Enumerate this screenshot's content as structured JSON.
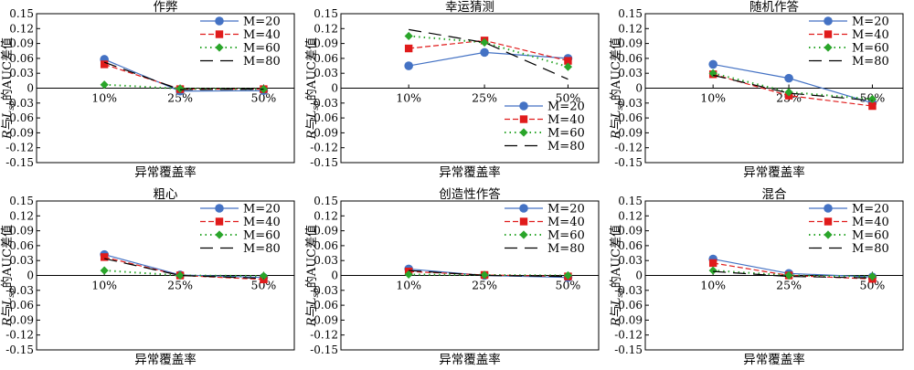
{
  "figure": {
    "legend_labels": [
      "M=20",
      "M=40",
      "M=60",
      "M=80"
    ],
    "series_styles": [
      {
        "color": "#4472c4",
        "marker": "circle",
        "dash": ""
      },
      {
        "color": "#e01b1b",
        "marker": "square",
        "dash": "6,3"
      },
      {
        "color": "#2aa52a",
        "marker": "diamond",
        "dash": "1.5,4"
      },
      {
        "color": "#000000",
        "marker": "none",
        "dash": "14,8"
      }
    ]
  },
  "chart_data": [
    {
      "type": "line",
      "title": "作弊",
      "xlabel": "异常覆盖率",
      "ylabel_parts": [
        "R",
        "与",
        "L",
        "sp",
        "的AUC差值"
      ],
      "categories": [
        "10%",
        "25%",
        "50%"
      ],
      "yticks": [
        "0.15",
        "0.12",
        "0.09",
        "0.06",
        "0.03",
        "0",
        "-0.03",
        "-0.06",
        "-0.09",
        "-0.12",
        "-0.15"
      ],
      "ylim": [
        -0.15,
        0.15
      ],
      "legend_position": "top-right",
      "series": [
        {
          "name": "M=20",
          "values": [
            0.058,
            -0.006,
            -0.005
          ]
        },
        {
          "name": "M=40",
          "values": [
            0.048,
            -0.002,
            -0.002
          ]
        },
        {
          "name": "M=60",
          "values": [
            0.007,
            -0.001,
            -0.002
          ]
        },
        {
          "name": "M=80",
          "values": [
            0.052,
            -0.003,
            -0.002
          ]
        }
      ]
    },
    {
      "type": "line",
      "title": "幸运猜测",
      "xlabel": "异常覆盖率",
      "ylabel_parts": [
        "R",
        "与",
        "L",
        "sp",
        "的AUC差值"
      ],
      "categories": [
        "10%",
        "25%",
        "50%"
      ],
      "yticks": [
        "0.15",
        "0.12",
        "0.09",
        "0.06",
        "0.03",
        "0",
        "-0.03",
        "-0.06",
        "-0.09",
        "-0.12",
        "-0.15"
      ],
      "ylim": [
        -0.15,
        0.15
      ],
      "legend_position": "bottom-right",
      "series": [
        {
          "name": "M=20",
          "values": [
            0.045,
            0.072,
            0.06
          ]
        },
        {
          "name": "M=40",
          "values": [
            0.08,
            0.096,
            0.055
          ]
        },
        {
          "name": "M=60",
          "values": [
            0.105,
            0.092,
            0.043
          ]
        },
        {
          "name": "M=80",
          "values": [
            0.118,
            0.092,
            0.018
          ]
        }
      ]
    },
    {
      "type": "line",
      "title": "随机作答",
      "xlabel": "异常覆盖率",
      "ylabel_parts": [
        "R",
        "与",
        "L",
        "sp",
        "的AUC差值"
      ],
      "categories": [
        "10%",
        "25%",
        "50%"
      ],
      "yticks": [
        "0.15",
        "0.12",
        "0.09",
        "0.06",
        "0.03",
        "0",
        "-0.03",
        "-0.06",
        "-0.09",
        "-0.12",
        "-0.15"
      ],
      "ylim": [
        -0.15,
        0.15
      ],
      "legend_position": "top-right",
      "series": [
        {
          "name": "M=20",
          "values": [
            0.048,
            0.02,
            -0.03
          ]
        },
        {
          "name": "M=40",
          "values": [
            0.028,
            -0.015,
            -0.036
          ]
        },
        {
          "name": "M=60",
          "values": [
            0.03,
            -0.008,
            -0.022
          ]
        },
        {
          "name": "M=80",
          "values": [
            0.026,
            -0.01,
            -0.025
          ]
        }
      ]
    },
    {
      "type": "line",
      "title": "粗心",
      "xlabel": "异常覆盖率",
      "ylabel_parts": [
        "R",
        "与",
        "L",
        "sp",
        "的AUC差值"
      ],
      "categories": [
        "10%",
        "25%",
        "50%"
      ],
      "yticks": [
        "0.15",
        "0.12",
        "0.09",
        "0.06",
        "0.03",
        "0",
        "-0.03",
        "-0.06",
        "-0.09",
        "-0.12",
        "-0.15"
      ],
      "ylim": [
        -0.15,
        0.15
      ],
      "legend_position": "top-right",
      "series": [
        {
          "name": "M=20",
          "values": [
            0.042,
            0.001,
            -0.004
          ]
        },
        {
          "name": "M=40",
          "values": [
            0.037,
            0.0,
            -0.008
          ]
        },
        {
          "name": "M=60",
          "values": [
            0.01,
            0.0,
            -0.001
          ]
        },
        {
          "name": "M=80",
          "values": [
            0.034,
            0.0,
            -0.006
          ]
        }
      ]
    },
    {
      "type": "line",
      "title": "创造性作答",
      "xlabel": "异常覆盖率",
      "ylabel_parts": [
        "R",
        "与",
        "L",
        "sp",
        "的AUC差值"
      ],
      "categories": [
        "10%",
        "25%",
        "50%"
      ],
      "yticks": [
        "0.15",
        "0.12",
        "0.09",
        "0.06",
        "0.03",
        "0",
        "-0.03",
        "-0.06",
        "-0.09",
        "-0.12",
        "-0.15"
      ],
      "ylim": [
        -0.15,
        0.15
      ],
      "legend_position": "top-right",
      "series": [
        {
          "name": "M=20",
          "values": [
            0.013,
            0.0,
            -0.004
          ]
        },
        {
          "name": "M=40",
          "values": [
            0.008,
            0.001,
            -0.002
          ]
        },
        {
          "name": "M=60",
          "values": [
            0.002,
            0.001,
            0.0
          ]
        },
        {
          "name": "M=80",
          "values": [
            0.01,
            0.0,
            -0.002
          ]
        }
      ]
    },
    {
      "type": "line",
      "title": "混合",
      "xlabel": "异常覆盖率",
      "ylabel_parts": [
        "R",
        "与",
        "L",
        "sp",
        "的AUC差值"
      ],
      "categories": [
        "10%",
        "25%",
        "50%"
      ],
      "yticks": [
        "0.15",
        "0.12",
        "0.09",
        "0.06",
        "0.03",
        "0",
        "-0.03",
        "-0.06",
        "-0.09",
        "-0.12",
        "-0.15"
      ],
      "ylim": [
        -0.15,
        0.15
      ],
      "legend_position": "top-right",
      "series": [
        {
          "name": "M=20",
          "values": [
            0.033,
            0.004,
            -0.003
          ]
        },
        {
          "name": "M=40",
          "values": [
            0.025,
            0.0,
            -0.007
          ]
        },
        {
          "name": "M=60",
          "values": [
            0.01,
            0.0,
            -0.002
          ]
        },
        {
          "name": "M=80",
          "values": [
            0.008,
            -0.002,
            -0.005
          ]
        }
      ]
    }
  ]
}
